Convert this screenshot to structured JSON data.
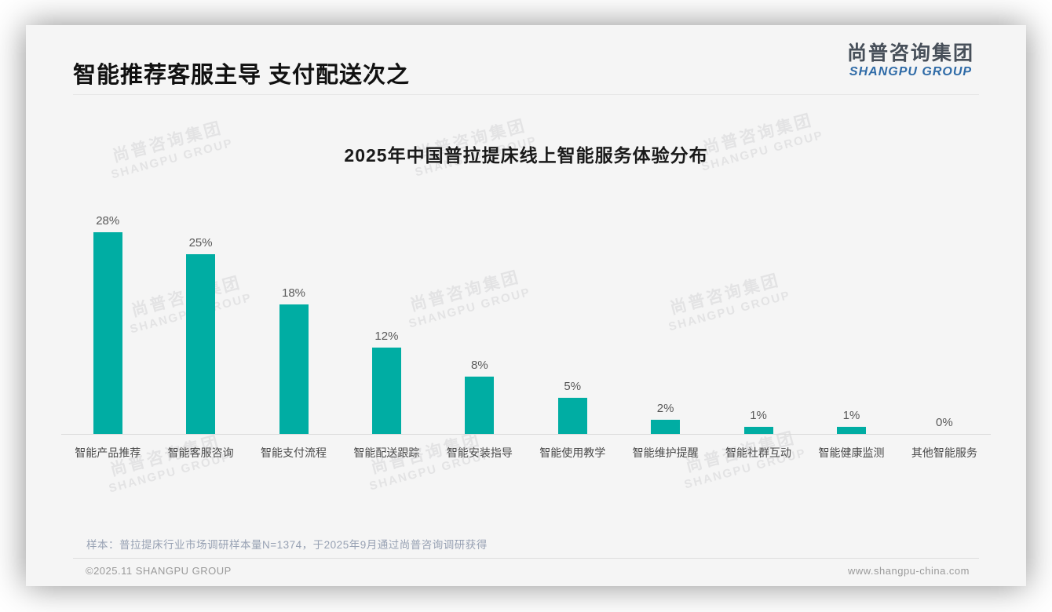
{
  "header": {
    "title": "智能推荐客服主导 支付配送次之",
    "logo_cn": "尚普咨询集团",
    "logo_en": "SHANGPU GROUP"
  },
  "watermark": {
    "line1": "尚普咨询集团",
    "line2": "SHANGPU GROUP"
  },
  "chart_data": {
    "type": "bar",
    "title": "2025年中国普拉提床线上智能服务体验分布",
    "categories": [
      "智能产品推荐",
      "智能客服咨询",
      "智能支付流程",
      "智能配送跟踪",
      "智能安装指导",
      "智能使用教学",
      "智能维护提醒",
      "智能社群互动",
      "智能健康监测",
      "其他智能服务"
    ],
    "values": [
      28,
      25,
      18,
      12,
      8,
      5,
      2,
      1,
      1,
      0
    ],
    "value_labels": [
      "28%",
      "25%",
      "18%",
      "12%",
      "8%",
      "5%",
      "2%",
      "1%",
      "1%",
      "0%"
    ],
    "unit": "%",
    "ylim": [
      0,
      30
    ],
    "grid": false,
    "legend": false,
    "bar_color": "#00ADA3"
  },
  "colors": {
    "bar": "#00ADA3",
    "logo_blue": "#2F6BA7",
    "logo_dark": "#474F59",
    "note_text": "#97A1B3"
  },
  "note": "样本：普拉提床行业市场调研样本量N=1374，于2025年9月通过尚普咨询调研获得",
  "footer": {
    "left": "©2025.11 SHANGPU GROUP",
    "right": "www.shangpu-china.com"
  }
}
